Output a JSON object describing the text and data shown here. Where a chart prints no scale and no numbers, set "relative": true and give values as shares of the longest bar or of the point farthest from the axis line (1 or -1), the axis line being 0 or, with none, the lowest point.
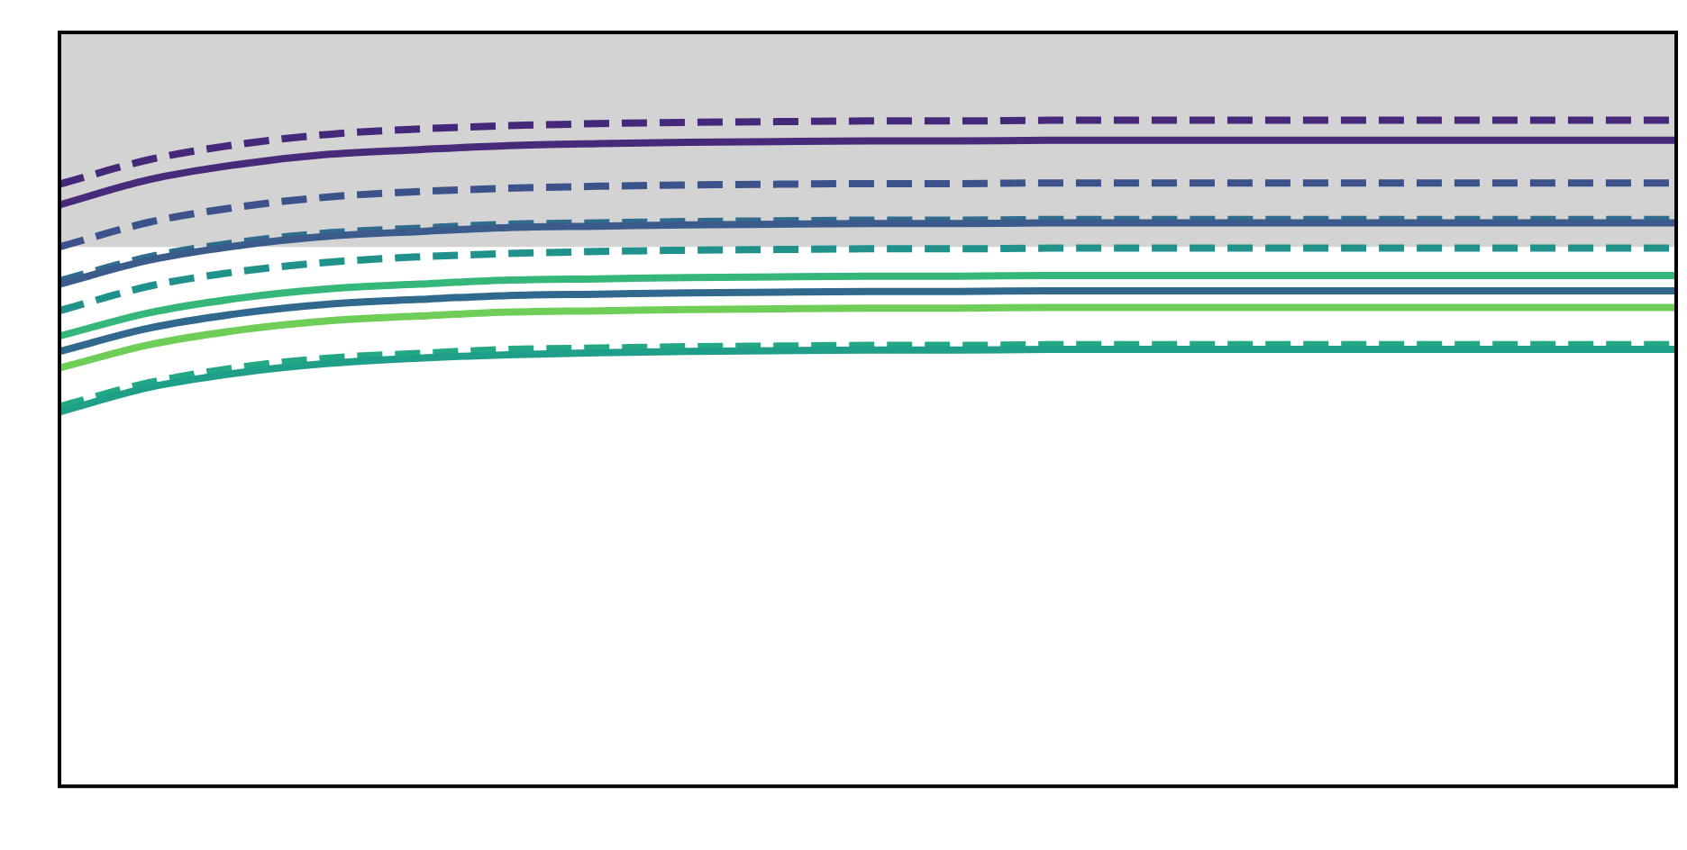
{
  "chart_data": {
    "type": "line",
    "relative": true,
    "legend": false,
    "marker": "none",
    "categories": [
      null,
      null,
      null,
      null,
      null,
      null,
      null,
      null,
      null,
      null,
      null,
      null,
      null,
      null,
      null,
      null,
      null,
      null,
      null
    ],
    "bands": [
      {
        "axis": "y",
        "from": 0.81,
        "to": 1.132,
        "color": "#d3d3d3"
      }
    ],
    "series": [
      {
        "color": "#46287a",
        "line_style": "dashed",
        "values": [
          0.904,
          0.941,
          0.964,
          0.979,
          0.987,
          0.992,
          0.995,
          0.997,
          0.998,
          0.999,
          0.999,
          1,
          1,
          1,
          1,
          1,
          1,
          1,
          1
        ]
      },
      {
        "color": "#472a7a",
        "line_style": "solid",
        "values": [
          0.873,
          0.911,
          0.934,
          0.949,
          0.956,
          0.962,
          0.965,
          0.967,
          0.968,
          0.969,
          0.969,
          0.97,
          0.97,
          0.97,
          0.97,
          0.97,
          0.97,
          0.97,
          0.97
        ]
      },
      {
        "color": "#3b528b",
        "line_style": "dashed",
        "values": [
          0.81,
          0.847,
          0.87,
          0.885,
          0.893,
          0.898,
          0.901,
          0.903,
          0.904,
          0.905,
          0.905,
          0.906,
          0.906,
          0.906,
          0.906,
          0.906,
          0.906,
          0.906,
          0.906
        ]
      },
      {
        "color": "#3b5b8c",
        "line_style": "solid",
        "values": [
          0.754,
          0.79,
          0.812,
          0.826,
          0.833,
          0.839,
          0.841,
          0.843,
          0.844,
          0.845,
          0.845,
          0.846,
          0.846,
          0.846,
          0.846,
          0.846,
          0.846,
          0.846,
          0.846
        ]
      },
      {
        "color": "#2f6c8e",
        "line_style": "dashed",
        "values": [
          0.759,
          0.795,
          0.817,
          0.831,
          0.838,
          0.844,
          0.846,
          0.848,
          0.849,
          0.85,
          0.85,
          0.851,
          0.851,
          0.851,
          0.851,
          0.851,
          0.851,
          0.851,
          0.851
        ]
      },
      {
        "color": "#21918c",
        "line_style": "dashed",
        "values": [
          0.714,
          0.751,
          0.773,
          0.787,
          0.795,
          0.8,
          0.803,
          0.805,
          0.806,
          0.807,
          0.807,
          0.808,
          0.808,
          0.808,
          0.808,
          0.808,
          0.808,
          0.808,
          0.808
        ]
      },
      {
        "color": "#35b779",
        "line_style": "solid",
        "values": [
          0.676,
          0.711,
          0.733,
          0.747,
          0.754,
          0.76,
          0.762,
          0.764,
          0.765,
          0.766,
          0.766,
          0.767,
          0.767,
          0.767,
          0.767,
          0.767,
          0.767,
          0.767,
          0.767
        ]
      },
      {
        "color": "#31688e",
        "line_style": "solid",
        "values": [
          0.653,
          0.688,
          0.71,
          0.724,
          0.731,
          0.737,
          0.739,
          0.741,
          0.742,
          0.743,
          0.743,
          0.744,
          0.744,
          0.744,
          0.744,
          0.744,
          0.744,
          0.744,
          0.744
        ]
      },
      {
        "color": "#6ece58",
        "line_style": "solid",
        "values": [
          0.628,
          0.663,
          0.685,
          0.699,
          0.706,
          0.712,
          0.714,
          0.716,
          0.717,
          0.718,
          0.718,
          0.719,
          0.719,
          0.719,
          0.719,
          0.719,
          0.719,
          0.719,
          0.719
        ]
      },
      {
        "color": "#1f9e89",
        "line_style": "solid",
        "values": [
          0.562,
          0.599,
          0.621,
          0.635,
          0.643,
          0.648,
          0.651,
          0.653,
          0.654,
          0.655,
          0.655,
          0.656,
          0.656,
          0.656,
          0.656,
          0.656,
          0.656,
          0.656,
          0.656
        ]
      },
      {
        "color": "#22a884",
        "line_style": "dashed",
        "values": [
          0.57,
          0.606,
          0.629,
          0.643,
          0.65,
          0.656,
          0.658,
          0.66,
          0.661,
          0.662,
          0.662,
          0.663,
          0.663,
          0.663,
          0.663,
          0.663,
          0.663,
          0.663,
          0.663
        ]
      }
    ]
  }
}
